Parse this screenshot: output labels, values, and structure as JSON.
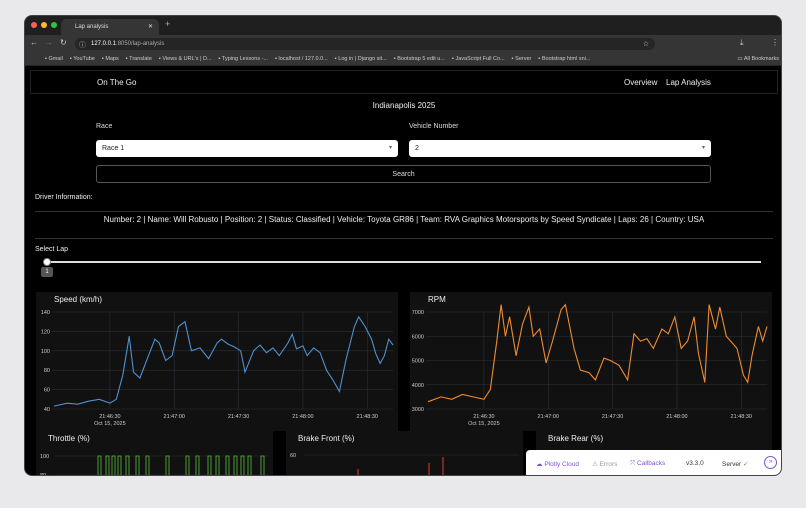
{
  "browser": {
    "tab_title": "Lap analysis",
    "url_host": "127.0.0.1",
    "url_path": ":8050/lap-analysis",
    "bookmarks": [
      "Gmail",
      "YouTube",
      "Maps",
      "Translate",
      "Views & URL's | D...",
      "Typing Lessons -...",
      "localhost / 127.0.0...",
      "Log in | Django sit...",
      "Bootstrap 5 edit u...",
      "JavaScript Full Co...",
      "Server",
      "Bootstrap html sni..."
    ],
    "all_bookmarks": "All Bookmarks"
  },
  "nav": {
    "brand": "On The Go",
    "links": [
      "Overview",
      "Lap Analysis"
    ]
  },
  "page": {
    "title": "Indianapolis 2025",
    "race_label": "Race",
    "race_value": "Race 1",
    "vehicle_label": "Vehicle Number",
    "vehicle_value": "2",
    "search_label": "Search",
    "driver_heading": "Driver Information:",
    "driver_info": "Number: 2   |   Name: Will Robusto   |   Position: 2   |   Status: Classified   |   Vehicle: Toyota GR86   |   Team: RVA Graphics Motorsports by Speed Syndicate   |   Laps: 26   |   Country: USA",
    "select_lap_label": "Select Lap",
    "lap_value": "1"
  },
  "chart_data": [
    {
      "type": "line",
      "title": "Speed (km/h)",
      "color": "#4f90d0",
      "ylim": [
        40,
        140
      ],
      "yticks": [
        40,
        60,
        80,
        100,
        120,
        140
      ],
      "xticks": [
        "21:46:30",
        "21:47:00",
        "21:47:30",
        "21:48:00",
        "21:48:30"
      ],
      "xdate": "Oct 15, 2025",
      "xrange": [
        "21:46:03",
        "21:48:42"
      ],
      "x": [
        "21:46:04",
        "21:46:10",
        "21:46:15",
        "21:46:20",
        "21:46:25",
        "21:46:30",
        "21:46:33",
        "21:46:36",
        "21:46:39",
        "21:46:41",
        "21:46:44",
        "21:46:48",
        "21:46:51",
        "21:46:53",
        "21:46:56",
        "21:46:59",
        "21:47:02",
        "21:47:05",
        "21:47:08",
        "21:47:12",
        "21:47:16",
        "21:47:20",
        "21:47:22",
        "21:47:25",
        "21:47:28",
        "21:47:31",
        "21:47:33",
        "21:47:37",
        "21:47:40",
        "21:47:43",
        "21:47:46",
        "21:47:49",
        "21:47:53",
        "21:47:55",
        "21:47:57",
        "21:48:00",
        "21:48:02",
        "21:48:05",
        "21:48:08",
        "21:48:11",
        "21:48:14",
        "21:48:17",
        "21:48:20",
        "21:48:24",
        "21:48:26",
        "21:48:29",
        "21:48:32",
        "21:48:34",
        "21:48:36",
        "21:48:38",
        "21:48:40",
        "21:48:42"
      ],
      "y": [
        43,
        46,
        45,
        48,
        50,
        46,
        50,
        75,
        115,
        78,
        72,
        95,
        112,
        108,
        90,
        95,
        125,
        130,
        100,
        103,
        92,
        108,
        112,
        107,
        104,
        100,
        78,
        100,
        106,
        98,
        103,
        95,
        108,
        117,
        102,
        105,
        95,
        103,
        98,
        80,
        70,
        58,
        90,
        125,
        135,
        125,
        112,
        97,
        87,
        95,
        112,
        106
      ]
    },
    {
      "type": "line",
      "title": "RPM",
      "color": "#f08c30",
      "ylim": [
        3000,
        7000
      ],
      "yticks": [
        3000,
        4000,
        5000,
        6000,
        7000
      ],
      "xticks": [
        "21:46:30",
        "21:47:00",
        "21:47:30",
        "21:48:00",
        "21:48:30"
      ],
      "xdate": "Oct 15, 2025",
      "xrange": [
        "21:46:03",
        "21:48:42"
      ],
      "x": [
        "21:46:04",
        "21:46:10",
        "21:46:15",
        "21:46:20",
        "21:46:25",
        "21:46:30",
        "21:46:33",
        "21:46:36",
        "21:46:38",
        "21:46:40",
        "21:46:42",
        "21:46:45",
        "21:46:48",
        "21:46:51",
        "21:46:53",
        "21:46:56",
        "21:46:59",
        "21:47:02",
        "21:47:06",
        "21:47:08",
        "21:47:12",
        "21:47:15",
        "21:47:19",
        "21:47:22",
        "21:47:26",
        "21:47:29",
        "21:47:33",
        "21:47:37",
        "21:47:40",
        "21:47:43",
        "21:47:46",
        "21:47:49",
        "21:47:53",
        "21:47:56",
        "21:47:59",
        "21:48:02",
        "21:48:05",
        "21:48:08",
        "21:48:10",
        "21:48:13",
        "21:48:15",
        "21:48:18",
        "21:48:20",
        "21:48:23",
        "21:48:28",
        "21:48:31",
        "21:48:33",
        "21:48:35",
        "21:48:38",
        "21:48:40",
        "21:48:42"
      ],
      "y": [
        3300,
        3500,
        3400,
        3600,
        3500,
        3400,
        3800,
        5800,
        7300,
        6000,
        6800,
        5200,
        6500,
        7200,
        6000,
        6300,
        4900,
        5800,
        7100,
        7300,
        5500,
        4600,
        4500,
        4200,
        5100,
        5000,
        4800,
        4200,
        6100,
        5800,
        5900,
        5500,
        6300,
        6100,
        6800,
        5500,
        5800,
        6800,
        5300,
        4100,
        7300,
        6300,
        7200,
        6000,
        5500,
        4400,
        4100,
        5200,
        6400,
        5800,
        6400
      ]
    },
    {
      "type": "line",
      "title": "Throttle (%)",
      "color": "#5fbf3f",
      "yticks": [
        80,
        100
      ]
    },
    {
      "type": "line",
      "title": "Brake Front (%)",
      "color": "#e0402f",
      "yticks": [
        60
      ]
    },
    {
      "type": "line",
      "title": "Brake Rear (%)",
      "color": "#e0402f",
      "yticks": []
    }
  ],
  "debug": {
    "plotly_cloud": "Plotly Cloud",
    "errors": "Errors",
    "callbacks": "Callbacks",
    "version": "v3.3.0",
    "server": "Server"
  }
}
